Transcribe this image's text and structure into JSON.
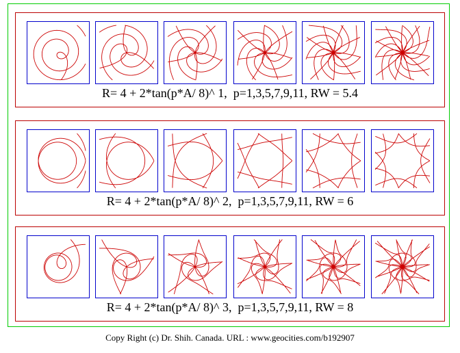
{
  "colors": {
    "curve": "#cc0000",
    "tile_border": "#0000cc",
    "panel_border": "#bb0000",
    "frame_border": "#00cc00"
  },
  "rows": [
    {
      "caption": "R= 4 + 2*tan(p*A/ 8)^ 1,  p=1,3,5,7,9,11, RW = 5.4",
      "exponent": 1,
      "rw": 5.4,
      "p_values": [
        1,
        3,
        5,
        7,
        9,
        11
      ]
    },
    {
      "caption": "R= 4 + 2*tan(p*A/ 8)^ 2,  p=1,3,5,7,9,11, RW = 6",
      "exponent": 2,
      "rw": 6,
      "p_values": [
        1,
        3,
        5,
        7,
        9,
        11
      ]
    },
    {
      "caption": "R= 4 + 2*tan(p*A/ 8)^ 3,  p=1,3,5,7,9,11, RW = 8",
      "exponent": 3,
      "rw": 8,
      "p_values": [
        1,
        3,
        5,
        7,
        9,
        11
      ]
    }
  ],
  "footer": "Copy Right (c) Dr. Shih. Canada. URL : www.geocities.com/b192907"
}
